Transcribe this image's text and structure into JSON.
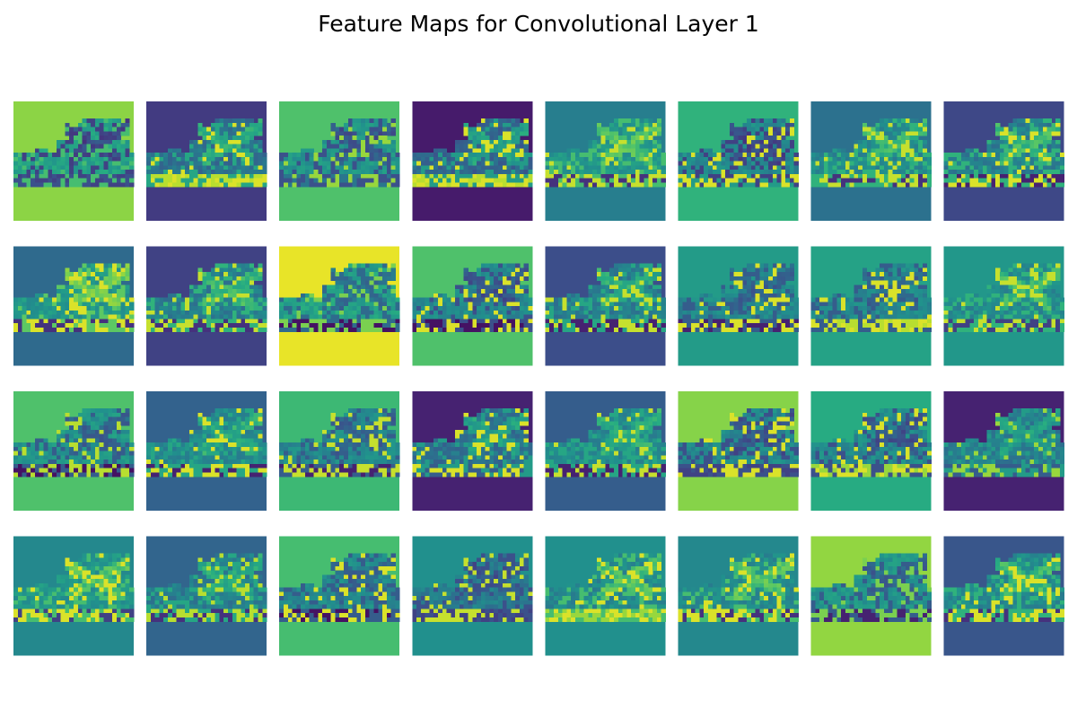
{
  "title": "Feature Maps for Convolutional Layer 1",
  "chart_data": {
    "type": "heatmap",
    "title": "Feature Maps for Convolutional Layer 1",
    "layer": 1,
    "grid": {
      "rows": 4,
      "cols": 8
    },
    "map_size": [
      28,
      28
    ],
    "colormap": "viridis",
    "axes": "off",
    "color_range": [
      0,
      1
    ],
    "panels": [
      {
        "index": 0,
        "background": 0.83,
        "shoe": 0.55,
        "edge": 0.2,
        "sole": 0.25,
        "highlight": 0.7
      },
      {
        "index": 1,
        "background": 0.18,
        "shoe": 0.35,
        "edge": 0.6,
        "sole": 0.9,
        "highlight": 0.95
      },
      {
        "index": 2,
        "background": 0.72,
        "shoe": 0.5,
        "edge": 0.25,
        "sole": 0.4,
        "highlight": 0.85
      },
      {
        "index": 3,
        "background": 0.08,
        "shoe": 0.3,
        "edge": 0.55,
        "sole": 0.9,
        "highlight": 0.95
      },
      {
        "index": 4,
        "background": 0.43,
        "shoe": 0.5,
        "edge": 0.7,
        "sole": 0.15,
        "highlight": 0.92
      },
      {
        "index": 5,
        "background": 0.65,
        "shoe": 0.45,
        "edge": 0.2,
        "sole": 0.55,
        "highlight": 0.95
      },
      {
        "index": 6,
        "background": 0.38,
        "shoe": 0.45,
        "edge": 0.65,
        "sole": 0.15,
        "highlight": 0.92
      },
      {
        "index": 7,
        "background": 0.22,
        "shoe": 0.4,
        "edge": 0.65,
        "sole": 0.1,
        "highlight": 0.95
      },
      {
        "index": 8,
        "background": 0.35,
        "shoe": 0.5,
        "edge": 0.75,
        "sole": 0.15,
        "highlight": 0.95
      },
      {
        "index": 9,
        "background": 0.2,
        "shoe": 0.4,
        "edge": 0.65,
        "sole": 0.15,
        "highlight": 0.92
      },
      {
        "index": 10,
        "background": 0.97,
        "shoe": 0.55,
        "edge": 0.35,
        "sole": 0.05,
        "highlight": 0.8
      },
      {
        "index": 11,
        "background": 0.72,
        "shoe": 0.45,
        "edge": 0.25,
        "sole": 0.05,
        "highlight": 0.95
      },
      {
        "index": 12,
        "background": 0.24,
        "shoe": 0.4,
        "edge": 0.6,
        "sole": 0.1,
        "highlight": 0.92
      },
      {
        "index": 13,
        "background": 0.55,
        "shoe": 0.45,
        "edge": 0.3,
        "sole": 0.1,
        "highlight": 0.95
      },
      {
        "index": 14,
        "background": 0.58,
        "shoe": 0.45,
        "edge": 0.3,
        "sole": 0.9,
        "highlight": 0.95
      },
      {
        "index": 15,
        "background": 0.53,
        "shoe": 0.45,
        "edge": 0.65,
        "sole": 0.2,
        "highlight": 0.92
      },
      {
        "index": 16,
        "background": 0.72,
        "shoe": 0.5,
        "edge": 0.3,
        "sole": 0.05,
        "highlight": 0.9
      },
      {
        "index": 17,
        "background": 0.32,
        "shoe": 0.45,
        "edge": 0.6,
        "sole": 0.1,
        "highlight": 0.95
      },
      {
        "index": 18,
        "background": 0.68,
        "shoe": 0.45,
        "edge": 0.3,
        "sole": 0.1,
        "highlight": 0.92
      },
      {
        "index": 19,
        "background": 0.1,
        "shoe": 0.35,
        "edge": 0.55,
        "sole": 0.3,
        "highlight": 0.95
      },
      {
        "index": 20,
        "background": 0.3,
        "shoe": 0.45,
        "edge": 0.6,
        "sole": 0.1,
        "highlight": 0.92
      },
      {
        "index": 21,
        "background": 0.82,
        "shoe": 0.45,
        "edge": 0.25,
        "sole": 0.2,
        "highlight": 0.95
      },
      {
        "index": 22,
        "background": 0.62,
        "shoe": 0.45,
        "edge": 0.25,
        "sole": 0.85,
        "highlight": 0.95
      },
      {
        "index": 23,
        "background": 0.1,
        "shoe": 0.4,
        "edge": 0.55,
        "sole": 0.3,
        "highlight": 0.85
      },
      {
        "index": 24,
        "background": 0.47,
        "shoe": 0.5,
        "edge": 0.7,
        "sole": 0.2,
        "highlight": 0.95
      },
      {
        "index": 25,
        "background": 0.33,
        "shoe": 0.4,
        "edge": 0.6,
        "sole": 0.15,
        "highlight": 0.9
      },
      {
        "index": 26,
        "background": 0.7,
        "shoe": 0.45,
        "edge": 0.3,
        "sole": 0.05,
        "highlight": 0.95
      },
      {
        "index": 27,
        "background": 0.5,
        "shoe": 0.4,
        "edge": 0.25,
        "sole": 0.2,
        "highlight": 0.92
      },
      {
        "index": 28,
        "background": 0.5,
        "shoe": 0.45,
        "edge": 0.7,
        "sole": 0.85,
        "highlight": 0.95
      },
      {
        "index": 29,
        "background": 0.47,
        "shoe": 0.45,
        "edge": 0.7,
        "sole": 0.15,
        "highlight": 0.95
      },
      {
        "index": 30,
        "background": 0.84,
        "shoe": 0.5,
        "edge": 0.3,
        "sole": 0.1,
        "highlight": 0.8
      },
      {
        "index": 31,
        "background": 0.27,
        "shoe": 0.45,
        "edge": 0.65,
        "sole": 0.15,
        "highlight": 0.95
      }
    ]
  }
}
